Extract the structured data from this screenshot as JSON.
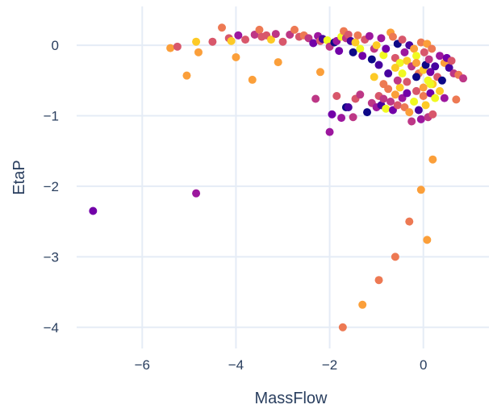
{
  "chart_data": {
    "type": "scatter",
    "title": "",
    "xlabel": "MassFlow",
    "ylabel": "EtaP",
    "xlim": [
      -7.4,
      1.4
    ],
    "ylim": [
      -4.3,
      0.55
    ],
    "x_ticks": [
      -6,
      -4,
      -2,
      0
    ],
    "y_ticks": [
      0,
      -1,
      -2,
      -3,
      -4
    ],
    "x_tick_labels": [
      "−6",
      "−4",
      "−2",
      "0"
    ],
    "y_tick_labels": [
      "0",
      "−1",
      "−2",
      "−3",
      "−4"
    ],
    "grid": true,
    "legend": "none",
    "colors": {
      "background": "#ffffff",
      "grid": "#e5ecf6",
      "text": "#2a3f5f",
      "palette": [
        "#0d0887",
        "#46039f",
        "#7201a8",
        "#9c179e",
        "#bd3786",
        "#d8576b",
        "#ed7953",
        "#fb9f3a",
        "#fdca26",
        "#f0f921"
      ]
    },
    "points": [
      {
        "x": -7.05,
        "y": -2.35,
        "c": 2
      },
      {
        "x": -4.85,
        "y": -2.1,
        "c": 3
      },
      {
        "x": -5.4,
        "y": -0.04,
        "c": 7
      },
      {
        "x": -5.25,
        "y": -0.02,
        "c": 5
      },
      {
        "x": -5.05,
        "y": -0.43,
        "c": 7
      },
      {
        "x": -4.85,
        "y": 0.05,
        "c": 8
      },
      {
        "x": -4.8,
        "y": -0.1,
        "c": 7
      },
      {
        "x": -4.5,
        "y": 0.05,
        "c": 5
      },
      {
        "x": -4.3,
        "y": 0.25,
        "c": 6
      },
      {
        "x": -4.15,
        "y": 0.1,
        "c": 5
      },
      {
        "x": -4.1,
        "y": 0.06,
        "c": 8
      },
      {
        "x": -4.0,
        "y": -0.17,
        "c": 7
      },
      {
        "x": -3.95,
        "y": 0.14,
        "c": 3
      },
      {
        "x": -3.8,
        "y": 0.08,
        "c": 5
      },
      {
        "x": -3.6,
        "y": 0.15,
        "c": 4
      },
      {
        "x": -3.5,
        "y": 0.22,
        "c": 6
      },
      {
        "x": -3.45,
        "y": 0.12,
        "c": 5
      },
      {
        "x": -3.35,
        "y": 0.14,
        "c": 5
      },
      {
        "x": -3.25,
        "y": 0.08,
        "c": 8
      },
      {
        "x": -3.15,
        "y": 0.16,
        "c": 4
      },
      {
        "x": -3.1,
        "y": -0.24,
        "c": 7
      },
      {
        "x": -3.0,
        "y": 0.05,
        "c": 5
      },
      {
        "x": -3.65,
        "y": -0.49,
        "c": 7
      },
      {
        "x": -2.85,
        "y": 0.15,
        "c": 4
      },
      {
        "x": -2.75,
        "y": 0.22,
        "c": 6
      },
      {
        "x": -2.65,
        "y": 0.12,
        "c": 5
      },
      {
        "x": -2.55,
        "y": 0.14,
        "c": 6
      },
      {
        "x": -2.45,
        "y": 0.1,
        "c": 4
      },
      {
        "x": -2.35,
        "y": 0.03,
        "c": 2
      },
      {
        "x": -2.25,
        "y": 0.13,
        "c": 3
      },
      {
        "x": -2.2,
        "y": 0.06,
        "c": 5
      },
      {
        "x": -2.15,
        "y": 0.09,
        "c": 1
      },
      {
        "x": -2.05,
        "y": 0.07,
        "c": 9
      },
      {
        "x": -2.0,
        "y": -0.02,
        "c": 4
      },
      {
        "x": -1.9,
        "y": 0.04,
        "c": 0
      },
      {
        "x": -1.85,
        "y": 0.06,
        "c": 3
      },
      {
        "x": -1.8,
        "y": -0.08,
        "c": 2
      },
      {
        "x": -1.75,
        "y": 0.12,
        "c": 9
      },
      {
        "x": -1.7,
        "y": 0.2,
        "c": 6
      },
      {
        "x": -1.65,
        "y": 0.1,
        "c": 4
      },
      {
        "x": -1.6,
        "y": 0.15,
        "c": 5
      },
      {
        "x": -1.55,
        "y": 0.06,
        "c": 1
      },
      {
        "x": -1.5,
        "y": -0.1,
        "c": 0
      },
      {
        "x": -1.45,
        "y": 0.04,
        "c": 8
      },
      {
        "x": -1.4,
        "y": 0.14,
        "c": 6
      },
      {
        "x": -1.35,
        "y": -0.05,
        "c": 9
      },
      {
        "x": -1.3,
        "y": -0.15,
        "c": 2
      },
      {
        "x": -1.25,
        "y": 0.08,
        "c": 5
      },
      {
        "x": -1.15,
        "y": 0.13,
        "c": 3
      },
      {
        "x": -1.1,
        "y": -0.2,
        "c": 0
      },
      {
        "x": -1.05,
        "y": -0.05,
        "c": 4
      },
      {
        "x": -1.0,
        "y": 0.0,
        "c": 8
      },
      {
        "x": -0.95,
        "y": -0.28,
        "c": 1
      },
      {
        "x": -0.9,
        "y": 0.1,
        "c": 3
      },
      {
        "x": -0.85,
        "y": -0.14,
        "c": 9
      },
      {
        "x": -0.8,
        "y": -0.05,
        "c": 2
      },
      {
        "x": -0.7,
        "y": 0.18,
        "c": 7
      },
      {
        "x": -0.65,
        "y": 0.12,
        "c": 6
      },
      {
        "x": -0.6,
        "y": -0.18,
        "c": 5
      },
      {
        "x": -0.55,
        "y": 0.02,
        "c": 0
      },
      {
        "x": -0.5,
        "y": -0.25,
        "c": 9
      },
      {
        "x": -0.45,
        "y": 0.08,
        "c": 5
      },
      {
        "x": -0.4,
        "y": -0.1,
        "c": 3
      },
      {
        "x": -0.35,
        "y": -0.22,
        "c": 8
      },
      {
        "x": -0.3,
        "y": 0.0,
        "c": 1
      },
      {
        "x": -0.25,
        "y": -0.3,
        "c": 4
      },
      {
        "x": -0.2,
        "y": -0.05,
        "c": 7
      },
      {
        "x": -0.15,
        "y": -0.15,
        "c": 9
      },
      {
        "x": -0.1,
        "y": -0.4,
        "c": 6
      },
      {
        "x": -0.05,
        "y": 0.04,
        "c": 6
      },
      {
        "x": 0.0,
        "y": -0.35,
        "c": 8
      },
      {
        "x": 0.02,
        "y": -0.1,
        "c": 5
      },
      {
        "x": 0.05,
        "y": -0.28,
        "c": 0
      },
      {
        "x": 0.08,
        "y": 0.02,
        "c": 7
      },
      {
        "x": 0.1,
        "y": -0.5,
        "c": 9
      },
      {
        "x": 0.12,
        "y": -0.2,
        "c": 4
      },
      {
        "x": 0.15,
        "y": -0.38,
        "c": 2
      },
      {
        "x": 0.18,
        "y": -0.05,
        "c": 6
      },
      {
        "x": 0.2,
        "y": -0.55,
        "c": 8
      },
      {
        "x": 0.25,
        "y": -0.3,
        "c": 1
      },
      {
        "x": 0.3,
        "y": -0.45,
        "c": 5
      },
      {
        "x": 0.35,
        "y": -0.15,
        "c": 3
      },
      {
        "x": 0.4,
        "y": -0.5,
        "c": 0
      },
      {
        "x": 0.45,
        "y": -0.25,
        "c": 7
      },
      {
        "x": 0.5,
        "y": -0.18,
        "c": 2
      },
      {
        "x": 0.55,
        "y": -0.32,
        "c": 1
      },
      {
        "x": 0.6,
        "y": -0.22,
        "c": 5
      },
      {
        "x": 0.65,
        "y": -0.4,
        "c": 4
      },
      {
        "x": 0.75,
        "y": -0.42,
        "c": 6
      },
      {
        "x": 0.85,
        "y": -0.47,
        "c": 4
      },
      {
        "x": 0.7,
        "y": -0.77,
        "c": 6
      },
      {
        "x": -2.3,
        "y": -0.76,
        "c": 4
      },
      {
        "x": -2.0,
        "y": -1.23,
        "c": 3
      },
      {
        "x": -1.95,
        "y": -0.98,
        "c": 2
      },
      {
        "x": -1.85,
        "y": -0.72,
        "c": 5
      },
      {
        "x": -1.75,
        "y": -1.03,
        "c": 3
      },
      {
        "x": -1.65,
        "y": -0.88,
        "c": 0
      },
      {
        "x": -1.6,
        "y": -0.88,
        "c": 1
      },
      {
        "x": -1.5,
        "y": -1.02,
        "c": 4
      },
      {
        "x": -1.45,
        "y": -0.76,
        "c": 5
      },
      {
        "x": -1.35,
        "y": -0.7,
        "c": 4
      },
      {
        "x": -1.2,
        "y": -0.95,
        "c": 0
      },
      {
        "x": -1.1,
        "y": -0.82,
        "c": 4
      },
      {
        "x": -1.0,
        "y": -0.88,
        "c": 3
      },
      {
        "x": -0.95,
        "y": -0.72,
        "c": 5
      },
      {
        "x": -0.9,
        "y": -0.85,
        "c": 1
      },
      {
        "x": -0.85,
        "y": -0.76,
        "c": 4
      },
      {
        "x": -0.8,
        "y": -0.9,
        "c": 9
      },
      {
        "x": -0.75,
        "y": -0.62,
        "c": 6
      },
      {
        "x": -0.7,
        "y": -0.8,
        "c": 4
      },
      {
        "x": -0.65,
        "y": -0.92,
        "c": 2
      },
      {
        "x": -0.6,
        "y": -0.7,
        "c": 7
      },
      {
        "x": -0.55,
        "y": -0.85,
        "c": 5
      },
      {
        "x": -0.5,
        "y": -0.6,
        "c": 8
      },
      {
        "x": -0.45,
        "y": -0.75,
        "c": 3
      },
      {
        "x": -0.4,
        "y": -0.88,
        "c": 6
      },
      {
        "x": -0.35,
        "y": -0.68,
        "c": 2
      },
      {
        "x": -0.3,
        "y": -0.95,
        "c": 7
      },
      {
        "x": -0.25,
        "y": -1.08,
        "c": 4
      },
      {
        "x": -0.2,
        "y": -0.8,
        "c": 9
      },
      {
        "x": -0.15,
        "y": -0.65,
        "c": 5
      },
      {
        "x": -0.1,
        "y": -0.92,
        "c": 1
      },
      {
        "x": -0.05,
        "y": -1.05,
        "c": 3
      },
      {
        "x": 0.0,
        "y": -0.72,
        "c": 6
      },
      {
        "x": 0.05,
        "y": -0.85,
        "c": 8
      },
      {
        "x": 0.1,
        "y": -1.02,
        "c": 4
      },
      {
        "x": 0.15,
        "y": -0.68,
        "c": 2
      },
      {
        "x": 0.2,
        "y": -0.98,
        "c": 5
      },
      {
        "x": 0.25,
        "y": -0.75,
        "c": 9
      },
      {
        "x": -0.55,
        "y": -0.5,
        "c": 4
      },
      {
        "x": -0.15,
        "y": -0.45,
        "c": 0
      },
      {
        "x": 0.15,
        "y": -0.55,
        "c": 9
      },
      {
        "x": -0.75,
        "y": -0.4,
        "c": 1
      },
      {
        "x": 0.35,
        "y": -0.65,
        "c": 8
      },
      {
        "x": -0.35,
        "y": -0.52,
        "c": 5
      },
      {
        "x": -0.6,
        "y": -0.32,
        "c": 8
      },
      {
        "x": 0.0,
        "y": -0.6,
        "c": 7
      },
      {
        "x": -1.05,
        "y": -0.45,
        "c": 8
      },
      {
        "x": -2.2,
        "y": -0.38,
        "c": 7
      },
      {
        "x": -0.15,
        "y": -0.25,
        "c": 7
      },
      {
        "x": -0.45,
        "y": -0.4,
        "c": 9
      },
      {
        "x": 0.45,
        "y": -0.75,
        "c": 3
      },
      {
        "x": -0.85,
        "y": -0.55,
        "c": 6
      },
      {
        "x": 0.2,
        "y": -1.62,
        "c": 7
      },
      {
        "x": -0.05,
        "y": -2.05,
        "c": 7
      },
      {
        "x": -0.3,
        "y": -2.5,
        "c": 6
      },
      {
        "x": 0.08,
        "y": -2.76,
        "c": 7
      },
      {
        "x": -0.6,
        "y": -3.0,
        "c": 6
      },
      {
        "x": -0.95,
        "y": -3.33,
        "c": 6
      },
      {
        "x": -1.3,
        "y": -3.68,
        "c": 7
      },
      {
        "x": -1.72,
        "y": -4.0,
        "c": 6
      }
    ]
  }
}
